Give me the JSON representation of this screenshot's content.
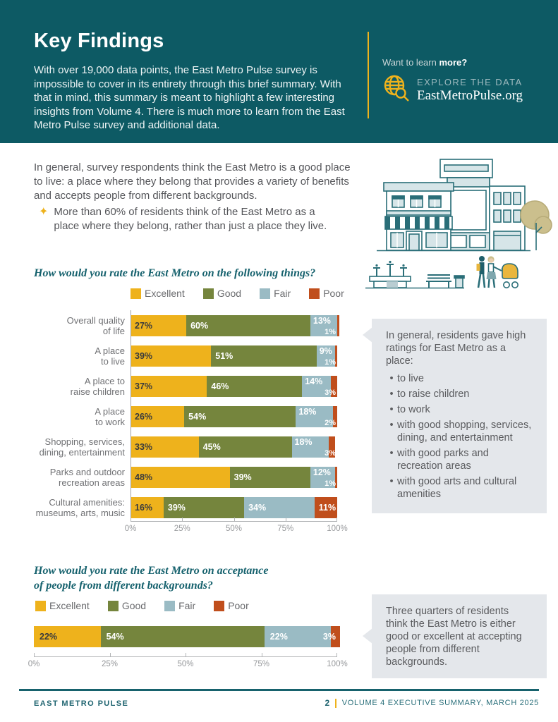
{
  "colors": {
    "header_teal": "#0d5a64",
    "accent_yellow": "#eeb21c",
    "excellent": "#eeb21c",
    "good": "#75853d",
    "fair": "#9abbc4",
    "poor": "#c04e1c",
    "heading_teal": "#15616d",
    "callout_bg": "#e4e7eb",
    "footer_teal": "#1f6470"
  },
  "header": {
    "title": "Key Findings",
    "intro": "With over 19,000 data points, the East Metro Pulse survey is impossible to cover in its entirety through this brief summary. With that in mind, this summary is meant to highlight a few interesting insights from Volume 4. There is much more to learn from the East Metro Pulse survey and additional data.",
    "learn_prefix": "Want to learn ",
    "learn_bold": "more?",
    "explore_label": "EXPLORE THE DATA",
    "explore_url": "EastMetroPulse.org"
  },
  "intro": {
    "bullet_icon": "✦",
    "paragraph": "In general, survey respondents think the East Metro is a good place to live: a place where they belong that provides a variety of benefits and accepts people from different backgrounds.",
    "bullet": "More than 60% of residents think of the East Metro as a place where they belong, rather than just a place they live."
  },
  "chart_data": [
    {
      "type": "bar",
      "stacked": true,
      "orientation": "horizontal",
      "title": "How would you rate the East Metro on the following things?",
      "legend": [
        "Excellent",
        "Good",
        "Fair",
        "Poor"
      ],
      "legend_position": "top",
      "categories": [
        [
          "Overall quality",
          "of life"
        ],
        [
          "A place",
          "to live"
        ],
        [
          "A place to",
          "raise children"
        ],
        [
          "A place",
          "to work"
        ],
        [
          "Shopping, services,",
          "dining, entertainment"
        ],
        [
          "Parks and outdoor",
          "recreation areas"
        ],
        [
          "Cultural amenities:",
          "museums, arts, music"
        ]
      ],
      "series": [
        {
          "name": "Excellent",
          "color_key": "excellent",
          "values": [
            27,
            39,
            37,
            26,
            33,
            48,
            16
          ]
        },
        {
          "name": "Good",
          "color_key": "good",
          "values": [
            60,
            51,
            46,
            54,
            45,
            39,
            39
          ]
        },
        {
          "name": "Fair",
          "color_key": "fair",
          "values": [
            13,
            9,
            14,
            18,
            18,
            12,
            34
          ]
        },
        {
          "name": "Poor",
          "color_key": "poor",
          "values": [
            1,
            1,
            3,
            2,
            3,
            1,
            11
          ]
        }
      ],
      "xlim": [
        0,
        100
      ],
      "x_ticks": [
        "0%",
        "25%",
        "50%",
        "75%",
        "100%"
      ],
      "grid": false
    },
    {
      "type": "bar",
      "stacked": true,
      "orientation": "horizontal",
      "title": "How would you rate the East Metro on acceptance of people from different backgrounds?",
      "title_lines": [
        "How would you rate the East Metro on acceptance",
        "of people from different backgrounds?"
      ],
      "legend": [
        "Excellent",
        "Good",
        "Fair",
        "Poor"
      ],
      "legend_position": "top",
      "categories": [
        [
          ""
        ]
      ],
      "series": [
        {
          "name": "Excellent",
          "color_key": "excellent",
          "values": [
            22
          ]
        },
        {
          "name": "Good",
          "color_key": "good",
          "values": [
            54
          ]
        },
        {
          "name": "Fair",
          "color_key": "fair",
          "values": [
            22
          ]
        },
        {
          "name": "Poor",
          "color_key": "poor",
          "values": [
            3
          ]
        }
      ],
      "xlim": [
        0,
        100
      ],
      "x_ticks": [
        "0%",
        "25%",
        "50%",
        "75%",
        "100%"
      ],
      "grid": false
    }
  ],
  "callouts": [
    {
      "intro": "In general, residents gave high ratings for East Metro as a place:",
      "bullet_mark": "•",
      "bullets": [
        "to live",
        "to raise children",
        "to work",
        "with good shopping, services, dining, and entertainment",
        "with good parks and recreation areas",
        "with good arts and cultural amenities"
      ]
    },
    {
      "text": "Three quarters of residents think the East Metro is either good or excellent at accepting people from different backgrounds."
    }
  ],
  "illustration": {
    "name": "street-scene-illustration"
  },
  "footer": {
    "left": "EAST METRO PULSE",
    "page_number": "2",
    "right": "VOLUME 4 EXECUTIVE SUMMARY, MARCH 2025"
  }
}
